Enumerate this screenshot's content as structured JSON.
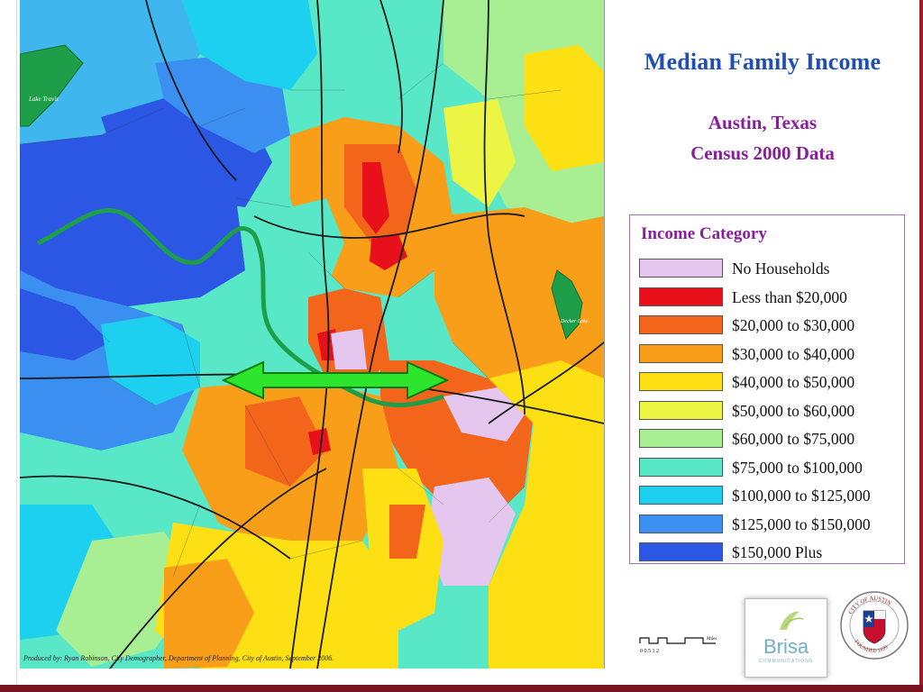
{
  "title": "Median Family Income",
  "subtitle_line1": "Austin, Texas",
  "subtitle_line2": "Census 2000 Data",
  "legend": {
    "title": "Income Category",
    "items": [
      {
        "label": "No Households",
        "color": "#e4c6ee"
      },
      {
        "label": "Less than $20,000",
        "color": "#e8101a"
      },
      {
        "label": "$20,000 to $30,000",
        "color": "#f4651c"
      },
      {
        "label": "$30,000 to $40,000",
        "color": "#f89e18"
      },
      {
        "label": "$40,000 to $50,000",
        "color": "#fde014"
      },
      {
        "label": "$50,000 to $60,000",
        "color": "#edf544"
      },
      {
        "label": "$60,000 to $75,000",
        "color": "#a8ef94"
      },
      {
        "label": "$75,000 to $100,000",
        "color": "#58e8c8"
      },
      {
        "label": "$100,000 to $125,000",
        "color": "#1ed0f0"
      },
      {
        "label": "$125,000 to $150,000",
        "color": "#3b8ff0"
      },
      {
        "label": "$150,000 Plus",
        "color": "#2c56e4"
      }
    ]
  },
  "map_labels": {
    "lake_travis": "Lake Travis",
    "decker_lake": "Decker Lake"
  },
  "credits": "Produced by:  Ryan Robinson, City Demographer, Department of Planning,  City of Austin,  September 2006.",
  "scale_label": "Miles",
  "scale_ticks": "0  0.5 1   2",
  "logos": {
    "brisa": "Brisa",
    "brisa_sub": "COMMUNICATIONS",
    "seal_top": "CITY OF AUSTIN",
    "seal_bottom": "FOUNDED 1839"
  },
  "arrow_color": "#2ee52e"
}
